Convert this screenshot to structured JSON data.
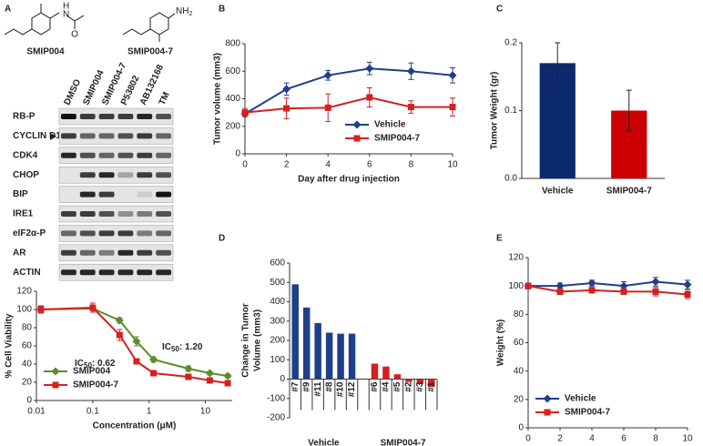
{
  "panel_labels": [
    "A",
    "B",
    "C",
    "D",
    "E"
  ],
  "compounds": {
    "names": [
      "SMIP004",
      "SMIP004-7"
    ],
    "atoms": [
      "H",
      "N",
      "O",
      "NH",
      "2"
    ]
  },
  "blot": {
    "lanes": [
      "DMSO",
      "SMIP004",
      "SMIP004-7",
      "P53802",
      "AB132168",
      "TM"
    ],
    "proteins": [
      "RB-P",
      "CYCLIN D1",
      "CDK4",
      "CHOP",
      "BIP",
      "IRE1",
      "eIF2α-P",
      "AR",
      "ACTIN"
    ]
  },
  "chart_data": [
    {
      "type": "line",
      "xscale": "log",
      "ylabel": "% Cell Viability",
      "xlabel": "Concentration (μM)",
      "xlim": [
        0.01,
        30
      ],
      "xticks": [
        0.01,
        0.1,
        1,
        10
      ],
      "ylim": [
        0,
        120
      ],
      "yticks": [
        0,
        20,
        40,
        60,
        80,
        100,
        120
      ],
      "legend": "lower left",
      "series": [
        {
          "name": "SMIP004",
          "color": "#5f8a2a",
          "marker": "diamond",
          "x": [
            0.012,
            0.1,
            0.3,
            0.6,
            1.2,
            5,
            12,
            25
          ],
          "values": [
            100,
            101,
            88,
            65,
            45,
            35,
            30,
            27
          ],
          "errors": [
            3,
            4,
            3,
            5,
            3,
            3,
            2,
            2
          ]
        },
        {
          "name": "SMIP004-7",
          "color": "#d42020",
          "marker": "square",
          "x": [
            0.012,
            0.1,
            0.3,
            0.6,
            1.2,
            5,
            12,
            25
          ],
          "values": [
            100,
            102,
            72,
            43,
            30,
            26,
            22,
            19
          ],
          "errors": [
            4,
            5,
            6,
            3,
            2,
            2,
            2,
            2
          ]
        }
      ],
      "annotations": [
        {
          "prefix": "IC",
          "subscript": "50",
          "text": ": 1.20",
          "color": "#4e7a1e"
        },
        {
          "prefix": "IC",
          "subscript": "50",
          "text": ": 0.62",
          "color": "#c81e1e"
        }
      ]
    },
    {
      "type": "line",
      "ylabel": "Tumor volume (mm3)",
      "xlabel": "Day after drug injection",
      "xlim": [
        0,
        10
      ],
      "xticks": [
        0,
        2,
        4,
        6,
        8,
        10
      ],
      "ylim": [
        0,
        800
      ],
      "yticks": [
        0,
        200,
        400,
        600,
        800
      ],
      "legend": "lower right",
      "series": [
        {
          "name": "Vehicle",
          "color": "#1f3f8a",
          "marker": "diamond",
          "x": [
            0,
            2,
            4,
            6,
            8,
            10
          ],
          "values": [
            290,
            470,
            570,
            620,
            600,
            570
          ],
          "errors": [
            20,
            45,
            35,
            45,
            60,
            55
          ]
        },
        {
          "name": "SMIP004-7",
          "color": "#d42020",
          "marker": "square",
          "x": [
            0,
            2,
            4,
            6,
            8,
            10
          ],
          "values": [
            300,
            330,
            335,
            410,
            340,
            340
          ],
          "errors": [
            30,
            75,
            100,
            70,
            45,
            65
          ]
        }
      ]
    },
    {
      "type": "bar",
      "ylabel": "Tumor Weight (gr)",
      "categories": [
        "Vehicle",
        "SMIP004-7"
      ],
      "values": [
        0.17,
        0.1
      ],
      "errors": [
        0.03,
        0.03
      ],
      "colors": [
        "#0d2a6e",
        "#cc0000"
      ],
      "ylim": [
        0,
        0.2
      ],
      "yticks": [
        {
          "value": 0,
          "label": "0.0"
        },
        0.1,
        0.2
      ]
    },
    {
      "type": "grouped-bar",
      "ylabel": [
        "Change in Tumor",
        "Volume (mm3)"
      ],
      "ylim": [
        -200,
        600
      ],
      "yticks": [
        -200,
        -100,
        0,
        100,
        200,
        300,
        400,
        500,
        600
      ],
      "groups": [
        {
          "name": "Vehicle",
          "color": "#1f3f8a",
          "categories": [
            "#7",
            "#9",
            "#11",
            "#8",
            "#10",
            "#12"
          ],
          "values": [
            490,
            370,
            290,
            240,
            235,
            235
          ]
        },
        {
          "name": "SMIP004-7",
          "color": "#d42020",
          "categories": [
            "#6",
            "#4",
            "#5",
            "#2",
            "#3",
            "#1"
          ],
          "values": [
            80,
            65,
            25,
            -15,
            -25,
            -40
          ]
        }
      ]
    },
    {
      "type": "line",
      "ylabel": "Weight (%)",
      "xlim": [
        0,
        10
      ],
      "xticks": [
        0,
        2,
        4,
        6,
        8,
        10
      ],
      "ylim": [
        0,
        120
      ],
      "yticks": [
        0,
        20,
        40,
        60,
        80,
        100,
        120
      ],
      "legend": "lower left",
      "series": [
        {
          "name": "Vehicle",
          "color": "#1f3f8a",
          "marker": "diamond",
          "x": [
            0,
            2,
            4,
            6,
            8,
            10
          ],
          "values": [
            100,
            100,
            102,
            100,
            103,
            101
          ],
          "errors": [
            2,
            2,
            2,
            3,
            3,
            3
          ]
        },
        {
          "name": "SMIP004-7",
          "color": "#d42020",
          "marker": "square",
          "x": [
            0,
            2,
            4,
            6,
            8,
            10
          ],
          "values": [
            100,
            96,
            97,
            96,
            96,
            94
          ],
          "errors": [
            2,
            2,
            2,
            2,
            3,
            3
          ]
        }
      ]
    }
  ]
}
